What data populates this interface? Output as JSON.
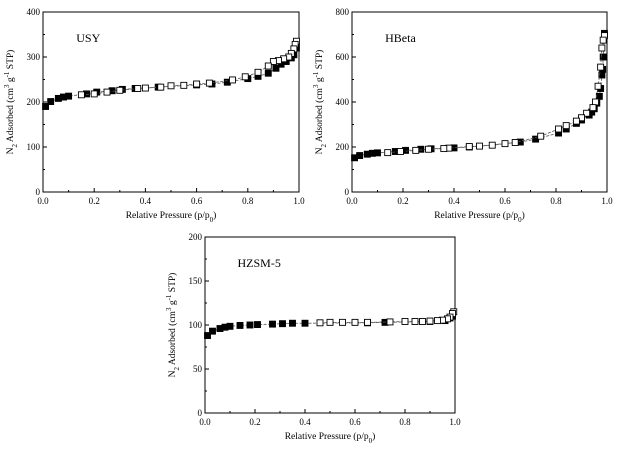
{
  "chart_data": [
    {
      "type": "scatter",
      "title": "USY",
      "xlabel": {
        "pre": "Relative Pressure (p/p",
        "sub": "0",
        "post": ")"
      },
      "ylabel": {
        "pre": "N",
        "sub": "2",
        "mid": " Adsorbed (cm",
        "sup1": "3",
        "mid2": " g",
        "sup2": "-1",
        "post": " STP)"
      },
      "xlim": [
        0,
        1
      ],
      "ylim": [
        0,
        400
      ],
      "xticks": [
        "0.0",
        "0.2",
        "0.4",
        "0.6",
        "0.8",
        "1.0"
      ],
      "yticks": [
        "0",
        "100",
        "200",
        "300",
        "400"
      ],
      "series": [
        {
          "name": "adsorption",
          "marker": "filled-square",
          "x": [
            0.01,
            0.03,
            0.06,
            0.08,
            0.1,
            0.17,
            0.21,
            0.27,
            0.31,
            0.36,
            0.45,
            0.6,
            0.66,
            0.72,
            0.8,
            0.84,
            0.88,
            0.91,
            0.93,
            0.95,
            0.97,
            0.98,
            0.99
          ],
          "y": [
            190,
            201,
            208,
            211,
            213,
            218,
            222,
            225,
            228,
            230,
            233,
            238,
            240,
            244,
            252,
            257,
            264,
            275,
            284,
            290,
            298,
            305,
            320
          ]
        },
        {
          "name": "desorption",
          "marker": "open-square",
          "x": [
            0.99,
            0.985,
            0.98,
            0.97,
            0.96,
            0.94,
            0.92,
            0.9,
            0.88,
            0.84,
            0.79,
            0.74,
            0.65,
            0.6,
            0.55,
            0.5,
            0.46,
            0.4,
            0.37,
            0.3,
            0.25,
            0.2,
            0.15
          ],
          "y": [
            335,
            328,
            318,
            308,
            300,
            296,
            292,
            290,
            280,
            266,
            256,
            249,
            242,
            240,
            237,
            236,
            233,
            231,
            230,
            226,
            222,
            218,
            216
          ]
        }
      ]
    },
    {
      "type": "scatter",
      "title": "HBeta",
      "xlabel": {
        "pre": "Relative Pressure (p/p",
        "sub": "0",
        "post": ")"
      },
      "ylabel": {
        "pre": "N",
        "sub": "2",
        "mid": " Adsorbed (cm",
        "sup1": "3",
        "mid2": " g",
        "sup2": "-1",
        "post": " STP)"
      },
      "xlim": [
        0,
        1
      ],
      "ylim": [
        0,
        800
      ],
      "xticks": [
        "0.0",
        "0.2",
        "0.4",
        "0.6",
        "0.8",
        "1.0"
      ],
      "yticks": [
        "0",
        "200",
        "400",
        "600",
        "800"
      ],
      "series": [
        {
          "name": "adsorption",
          "marker": "filled-square",
          "x": [
            0.01,
            0.03,
            0.06,
            0.08,
            0.1,
            0.17,
            0.21,
            0.27,
            0.31,
            0.4,
            0.46,
            0.66,
            0.72,
            0.81,
            0.84,
            0.88,
            0.9,
            0.93,
            0.94,
            0.95,
            0.96,
            0.97,
            0.975,
            0.98,
            0.983,
            0.985,
            0.99
          ],
          "y": [
            152,
            162,
            168,
            172,
            174,
            180,
            185,
            190,
            192,
            196,
            200,
            222,
            235,
            262,
            280,
            305,
            320,
            342,
            355,
            370,
            395,
            425,
            460,
            520,
            545,
            600,
            705
          ]
        },
        {
          "name": "desorption",
          "marker": "open-square",
          "x": [
            0.99,
            0.985,
            0.98,
            0.975,
            0.965,
            0.955,
            0.945,
            0.92,
            0.9,
            0.88,
            0.84,
            0.81,
            0.74,
            0.64,
            0.6,
            0.55,
            0.5,
            0.46,
            0.38,
            0.36,
            0.3,
            0.25,
            0.19,
            0.14
          ],
          "y": [
            695,
            675,
            640,
            555,
            470,
            400,
            375,
            350,
            330,
            315,
            295,
            280,
            248,
            220,
            215,
            208,
            204,
            202,
            195,
            193,
            190,
            185,
            180,
            175
          ]
        }
      ]
    },
    {
      "type": "scatter",
      "title": "HZSM-5",
      "xlabel": {
        "pre": "Relative Pressure (p/p",
        "sub": "0",
        "post": ")"
      },
      "ylabel": {
        "pre": "N",
        "sub": "2",
        "mid": " Adsorbed (cm",
        "sup1": "3",
        "mid2": " g",
        "sup2": "-1",
        "post": " STP)"
      },
      "xlim": [
        0,
        1
      ],
      "ylim": [
        0,
        200
      ],
      "xticks": [
        "0.0",
        "0.2",
        "0.4",
        "0.6",
        "0.8",
        "1.0"
      ],
      "yticks": [
        "0",
        "50",
        "100",
        "150",
        "200"
      ],
      "series": [
        {
          "name": "adsorption",
          "marker": "filled-square",
          "x": [
            0.01,
            0.03,
            0.06,
            0.08,
            0.1,
            0.14,
            0.18,
            0.21,
            0.27,
            0.31,
            0.35,
            0.4,
            0.65,
            0.72,
            0.9,
            0.96,
            0.98,
            0.99
          ],
          "y": [
            88,
            93,
            96,
            97.5,
            98.5,
            99.5,
            100,
            100.5,
            101,
            101.5,
            102,
            102,
            102.5,
            103,
            104,
            105,
            108,
            110
          ]
        },
        {
          "name": "desorption",
          "marker": "open-square",
          "x": [
            0.995,
            0.99,
            0.98,
            0.97,
            0.95,
            0.93,
            0.9,
            0.87,
            0.84,
            0.8,
            0.74,
            0.65,
            0.6,
            0.55,
            0.5,
            0.46
          ],
          "y": [
            115,
            113,
            109,
            107,
            105.5,
            105,
            104.5,
            104,
            104,
            104,
            103.5,
            103,
            103,
            103,
            103,
            102.5
          ]
        }
      ]
    }
  ]
}
